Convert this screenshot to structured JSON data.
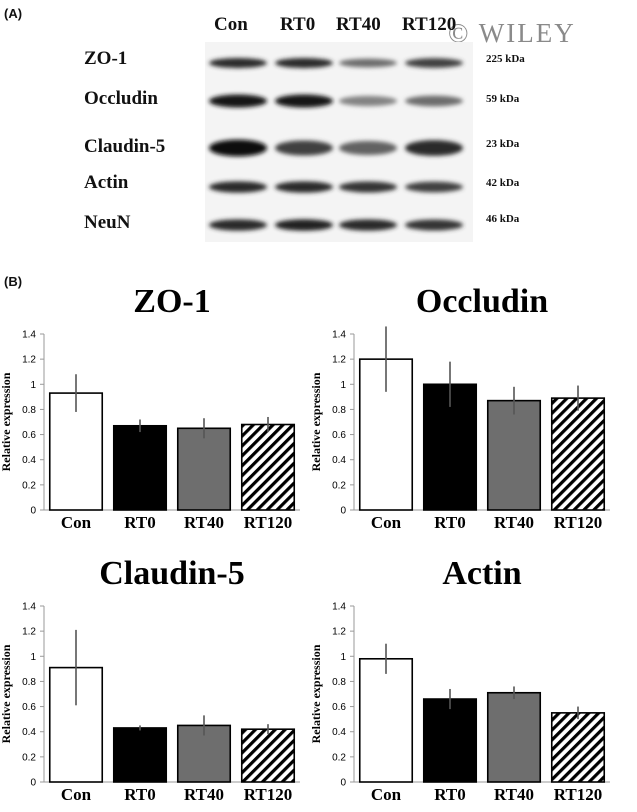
{
  "panel_a": {
    "label": "(A)",
    "lanes": [
      "Con",
      "RT0",
      "RT40",
      "RT120"
    ],
    "watermark": "© WILEY",
    "rows": [
      {
        "protein": "ZO-1",
        "mw": "225 kDa"
      },
      {
        "protein": "Occludin",
        "mw": "59 kDa"
      },
      {
        "protein": "Claudin-5",
        "mw": "23 kDa"
      },
      {
        "protein": "Actin",
        "mw": "42 kDa"
      },
      {
        "protein": "NeuN",
        "mw": "46 kDa"
      }
    ],
    "band_intensity": [
      [
        0.85,
        0.85,
        0.55,
        0.75
      ],
      [
        0.95,
        0.95,
        0.45,
        0.55
      ],
      [
        1.0,
        0.75,
        0.6,
        0.85
      ],
      [
        0.85,
        0.85,
        0.8,
        0.75
      ],
      [
        0.85,
        0.9,
        0.85,
        0.8
      ]
    ]
  },
  "panel_b": {
    "label": "(B)"
  },
  "colors": {
    "con": "#ffffff",
    "rt0": "#000000",
    "rt40": "#6e6e6e",
    "rt120": "hatch",
    "error": "#555555"
  },
  "chart_data": [
    {
      "type": "bar",
      "title": "ZO-1",
      "ylabel": "Relative expression",
      "categories": [
        "Con",
        "RT0",
        "RT40",
        "RT120"
      ],
      "values": [
        0.93,
        0.67,
        0.65,
        0.68
      ],
      "errors": [
        0.15,
        0.05,
        0.08,
        0.06
      ],
      "ylim": [
        0,
        1.4
      ],
      "yticks": [
        "0",
        "0.2",
        "0.4",
        "0.6",
        "0.8",
        "1",
        "1.2",
        "1.4"
      ]
    },
    {
      "type": "bar",
      "title": "Occludin",
      "ylabel": "Relative expression",
      "categories": [
        "Con",
        "RT0",
        "RT40",
        "RT120"
      ],
      "values": [
        1.2,
        1.0,
        0.87,
        0.89
      ],
      "errors": [
        0.26,
        0.18,
        0.11,
        0.1
      ],
      "ylim": [
        0,
        1.4
      ],
      "yticks": [
        "0",
        "0.2",
        "0.4",
        "0.6",
        "0.8",
        "1",
        "1.2",
        "1.4"
      ]
    },
    {
      "type": "bar",
      "title": "Claudin-5",
      "ylabel": "Relative expression",
      "categories": [
        "Con",
        "RT0",
        "RT40",
        "RT120"
      ],
      "values": [
        0.91,
        0.43,
        0.45,
        0.42
      ],
      "errors": [
        0.3,
        0.02,
        0.08,
        0.04
      ],
      "ylim": [
        0,
        1.4
      ],
      "yticks": [
        "0",
        "0.2",
        "0.4",
        "0.6",
        "0.8",
        "1",
        "1.2",
        "1.4"
      ]
    },
    {
      "type": "bar",
      "title": "Actin",
      "ylabel": "Relative expression",
      "categories": [
        "Con",
        "RT0",
        "RT40",
        "RT120"
      ],
      "values": [
        0.98,
        0.66,
        0.71,
        0.55
      ],
      "errors": [
        0.12,
        0.08,
        0.05,
        0.05
      ],
      "ylim": [
        0,
        1.4
      ],
      "yticks": [
        "0",
        "0.2",
        "0.4",
        "0.6",
        "0.8",
        "1",
        "1.2",
        "1.4"
      ]
    }
  ]
}
